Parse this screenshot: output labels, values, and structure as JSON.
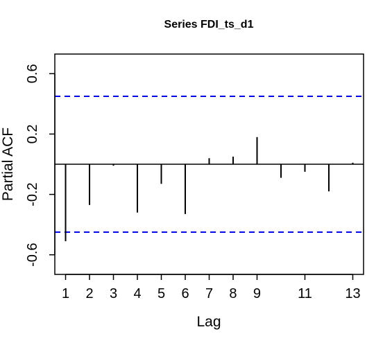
{
  "chart_data": {
    "type": "bar",
    "title": "Series  FDI_ts_d1",
    "xlabel": "Lag",
    "ylabel": "Partial ACF",
    "x": [
      1,
      2,
      3,
      4,
      5,
      6,
      7,
      8,
      9,
      10,
      11,
      12,
      13
    ],
    "values": [
      -0.51,
      -0.27,
      -0.01,
      -0.32,
      -0.13,
      -0.33,
      0.04,
      0.05,
      0.18,
      -0.09,
      -0.05,
      -0.18,
      0.01
    ],
    "confidence_bounds": [
      0.45,
      -0.45
    ],
    "confidence_color": "#0000ff",
    "xlim": [
      0.55,
      13.45
    ],
    "ylim": [
      -0.73,
      0.73
    ],
    "xticks": [
      1,
      2,
      3,
      4,
      5,
      6,
      7,
      8,
      9,
      11,
      13
    ],
    "yticks": [
      -0.6,
      -0.2,
      0.2,
      0.6
    ],
    "ytick_labels": [
      "-0.6",
      "-0.2",
      "0.2",
      "0.6"
    ],
    "grid": false
  }
}
